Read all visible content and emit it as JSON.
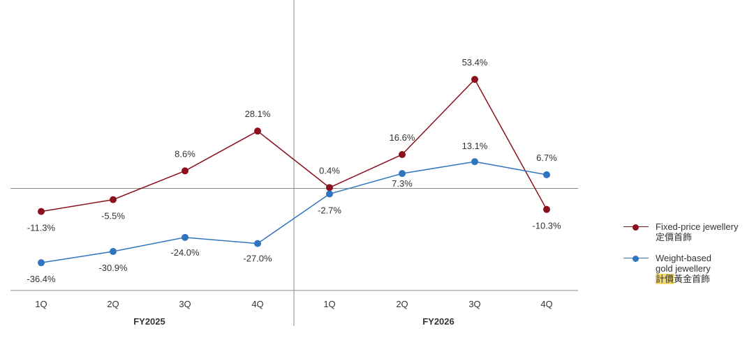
{
  "chart_data": {
    "type": "line",
    "categories": [
      "1Q",
      "2Q",
      "3Q",
      "4Q",
      "1Q",
      "2Q",
      "3Q",
      "4Q"
    ],
    "groups": [
      {
        "label": "FY2025",
        "categories": [
          "1Q",
          "2Q",
          "3Q",
          "4Q"
        ]
      },
      {
        "label": "FY2026",
        "categories": [
          "1Q",
          "2Q",
          "3Q",
          "4Q"
        ]
      }
    ],
    "series": [
      {
        "name": "Fixed-price jewellery",
        "name_secondary": "定價首飾",
        "color": "#8b0f1c",
        "values": [
          -11.3,
          -5.5,
          8.6,
          28.1,
          0.4,
          16.6,
          53.4,
          -10.3
        ],
        "labels": [
          "-11.3%",
          "-5.5%",
          "8.6%",
          "28.1%",
          "0.4%",
          "16.6%",
          "53.4%",
          "-10.3%"
        ]
      },
      {
        "name": "Weight-based gold jewellery",
        "name_lines": [
          "Weight-based",
          "gold jewellery"
        ],
        "name_secondary_highlight": "計價",
        "name_secondary_rest": "黃金首飾",
        "color": "#2f74bf",
        "values": [
          -36.4,
          -30.9,
          -24.0,
          -27.0,
          -2.7,
          7.3,
          13.1,
          6.7
        ],
        "labels": [
          "-36.4%",
          "-30.9%",
          "-24.0%",
          "-27.0%",
          "-2.7%",
          "7.3%",
          "13.1%",
          "6.7%"
        ]
      }
    ],
    "ylim": [
      -50,
      70
    ],
    "grid": false,
    "legend_position": "right"
  }
}
